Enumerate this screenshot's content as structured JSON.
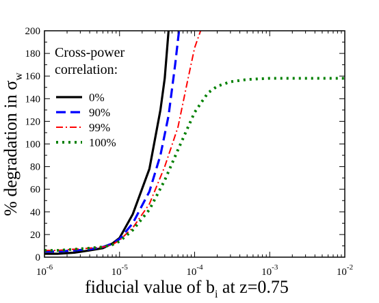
{
  "chart_data": {
    "type": "line",
    "xlabel": {
      "main": "fiducial value of b",
      "sub": "i",
      "tail": " at z=0.75"
    },
    "ylabel": {
      "main": "% degradation in σ",
      "sub": "w"
    },
    "xscale": "log",
    "xlim": [
      1e-06,
      0.01
    ],
    "ylim": [
      0,
      200
    ],
    "grid": false,
    "y_ticks": [
      "0",
      "20",
      "40",
      "60",
      "80",
      "100",
      "120",
      "140",
      "160",
      "180",
      "200"
    ],
    "x_ticks": [
      {
        "base": "10",
        "exp": "-6"
      },
      {
        "base": "10",
        "exp": "-5"
      },
      {
        "base": "10",
        "exp": "-4"
      },
      {
        "base": "10",
        "exp": "-3"
      },
      {
        "base": "10",
        "exp": "-2"
      }
    ],
    "legend": {
      "placement": "upper-left",
      "title_lines": [
        "Cross-power",
        "correlation:"
      ]
    },
    "series": [
      {
        "name": "0%",
        "color": "#000000",
        "style": "solid",
        "x": [
          1e-06,
          1.5e-06,
          2.5e-06,
          4e-06,
          6e-06,
          8e-06,
          1e-05,
          1.5e-05,
          2.5e-05,
          3.5e-05,
          4e-05,
          4.5e-05
        ],
        "y": [
          3,
          3,
          4,
          6,
          8,
          12,
          17,
          38,
          78,
          130,
          158,
          200
        ]
      },
      {
        "name": "90%",
        "color": "#0000ff",
        "style": "dashed",
        "x": [
          1e-06,
          1.5e-06,
          2.5e-06,
          4e-06,
          6e-06,
          8e-06,
          1e-05,
          1.5e-05,
          2.5e-05,
          3.5e-05,
          4.5e-05,
          5.5e-05,
          6.2e-05
        ],
        "y": [
          5,
          5,
          6,
          7,
          9,
          12,
          16,
          30,
          58,
          90,
          125,
          170,
          200
        ]
      },
      {
        "name": "99%",
        "color": "#ff0000",
        "style": "dashdot",
        "x": [
          1e-06,
          1.5e-06,
          2.5e-06,
          4e-06,
          6e-06,
          8e-06,
          1e-05,
          1.5e-05,
          2.5e-05,
          4e-05,
          6e-05,
          8e-05,
          0.0001,
          0.00012
        ],
        "y": [
          6,
          6,
          7,
          8,
          9,
          11,
          15,
          26,
          47,
          80,
          115,
          155,
          185,
          200
        ]
      },
      {
        "name": "100%",
        "color": "#008000",
        "style": "dotted",
        "x": [
          1e-06,
          1.5e-06,
          2.5e-06,
          4e-06,
          6e-06,
          8e-06,
          1e-05,
          1.5e-05,
          2.5e-05,
          4e-05,
          6e-05,
          0.0001,
          0.00015,
          0.0002,
          0.0003,
          0.0005,
          0.001,
          0.003,
          0.01
        ],
        "y": [
          6,
          6,
          7,
          8,
          9,
          11,
          14,
          24,
          42,
          68,
          95,
          128,
          145,
          151,
          155,
          157,
          158,
          158,
          158
        ]
      }
    ]
  }
}
